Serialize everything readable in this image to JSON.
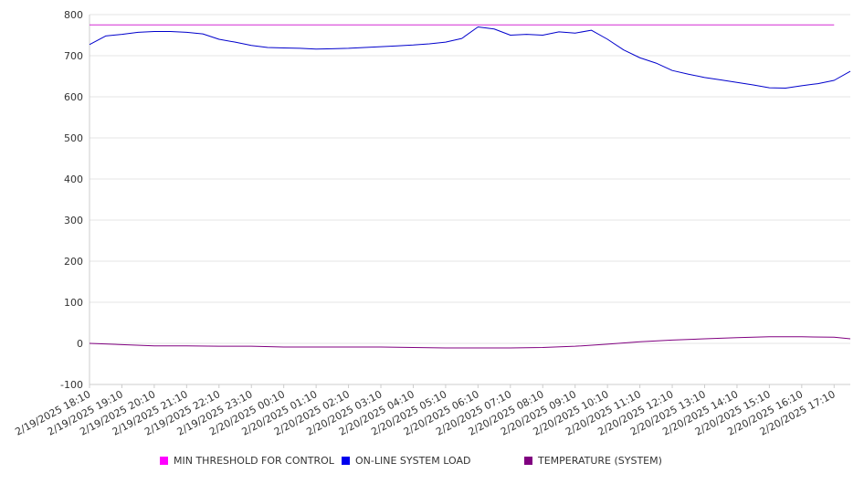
{
  "chart_data": {
    "type": "line",
    "y_ticks": [
      800,
      700,
      600,
      500,
      400,
      300,
      200,
      100,
      0,
      -100
    ],
    "ylim": [
      -100,
      800
    ],
    "grid": true,
    "legend_position": "bottom",
    "x_ticks": [
      "2/19/2025 18:10",
      "2/19/2025 19:10",
      "2/19/2025 20:10",
      "2/19/2025 21:10",
      "2/19/2025 22:10",
      "2/19/2025 23:10",
      "2/20/2025 00:10",
      "2/20/2025 01:10",
      "2/20/2025 02:10",
      "2/20/2025 03:10",
      "2/20/2025 04:10",
      "2/20/2025 05:10",
      "2/20/2025 06:10",
      "2/20/2025 07:10",
      "2/20/2025 08:10",
      "2/20/2025 09:10",
      "2/20/2025 10:10",
      "2/20/2025 11:10",
      "2/20/2025 12:10",
      "2/20/2025 13:10",
      "2/20/2025 14:10",
      "2/20/2025 15:10",
      "2/20/2025 16:10",
      "2/20/2025 17:10"
    ],
    "series": [
      {
        "name": "MIN THRESHOLD FOR CONTROL",
        "color": "#d42ad4",
        "x": [
          "2/19/2025 18:10",
          "2/20/2025 17:10"
        ],
        "values": [
          775,
          775
        ]
      },
      {
        "name": "ON-LINE SYSTEM LOAD",
        "color": "#0000cc",
        "x": [
          "2/19/2025 18:10",
          "2/19/2025 18:40",
          "2/19/2025 19:10",
          "2/19/2025 19:40",
          "2/19/2025 20:10",
          "2/19/2025 20:40",
          "2/19/2025 21:10",
          "2/19/2025 21:40",
          "2/19/2025 22:10",
          "2/19/2025 22:40",
          "2/19/2025 23:10",
          "2/19/2025 23:40",
          "2/20/2025 00:10",
          "2/20/2025 00:40",
          "2/20/2025 01:10",
          "2/20/2025 01:40",
          "2/20/2025 02:10",
          "2/20/2025 02:40",
          "2/20/2025 03:10",
          "2/20/2025 03:40",
          "2/20/2025 04:10",
          "2/20/2025 04:40",
          "2/20/2025 05:10",
          "2/20/2025 05:40",
          "2/20/2025 06:10",
          "2/20/2025 06:40",
          "2/20/2025 07:10",
          "2/20/2025 07:40",
          "2/20/2025 08:10",
          "2/20/2025 08:40",
          "2/20/2025 09:10",
          "2/20/2025 09:40",
          "2/20/2025 10:10",
          "2/20/2025 10:40",
          "2/20/2025 11:10",
          "2/20/2025 11:40",
          "2/20/2025 12:10",
          "2/20/2025 12:40",
          "2/20/2025 13:10",
          "2/20/2025 13:40",
          "2/20/2025 14:10",
          "2/20/2025 14:40",
          "2/20/2025 15:10",
          "2/20/2025 15:40",
          "2/20/2025 16:10",
          "2/20/2025 16:40",
          "2/20/2025 17:10",
          "2/20/2025 17:40"
        ],
        "values": [
          727,
          748,
          752,
          757,
          759,
          759,
          757,
          753,
          740,
          733,
          725,
          720,
          719,
          718,
          716,
          717,
          718,
          720,
          722,
          724,
          726,
          729,
          733,
          742,
          770,
          765,
          750,
          752,
          750,
          758,
          755,
          762,
          740,
          714,
          695,
          682,
          664,
          655,
          647,
          641,
          635,
          629,
          622,
          621,
          627,
          632,
          640,
          662
        ]
      },
      {
        "name": "TEMPERATURE (SYSTEM)",
        "color": "#800080",
        "x": [
          "2/19/2025 18:10",
          "2/19/2025 19:10",
          "2/19/2025 20:10",
          "2/19/2025 21:10",
          "2/19/2025 22:10",
          "2/19/2025 23:10",
          "2/20/2025 00:10",
          "2/20/2025 01:10",
          "2/20/2025 02:10",
          "2/20/2025 03:10",
          "2/20/2025 04:10",
          "2/20/2025 05:10",
          "2/20/2025 06:10",
          "2/20/2025 07:10",
          "2/20/2025 08:10",
          "2/20/2025 09:10",
          "2/20/2025 10:10",
          "2/20/2025 11:10",
          "2/20/2025 12:10",
          "2/20/2025 13:10",
          "2/20/2025 14:10",
          "2/20/2025 15:10",
          "2/20/2025 16:10",
          "2/20/2025 17:10",
          "2/20/2025 17:40"
        ],
        "values": [
          0,
          -3,
          -6,
          -6,
          -7,
          -7,
          -9,
          -9,
          -9,
          -9,
          -10,
          -11,
          -11,
          -11,
          -10,
          -7,
          -2,
          4,
          8,
          11,
          14,
          16,
          16,
          15,
          11
        ]
      }
    ]
  }
}
